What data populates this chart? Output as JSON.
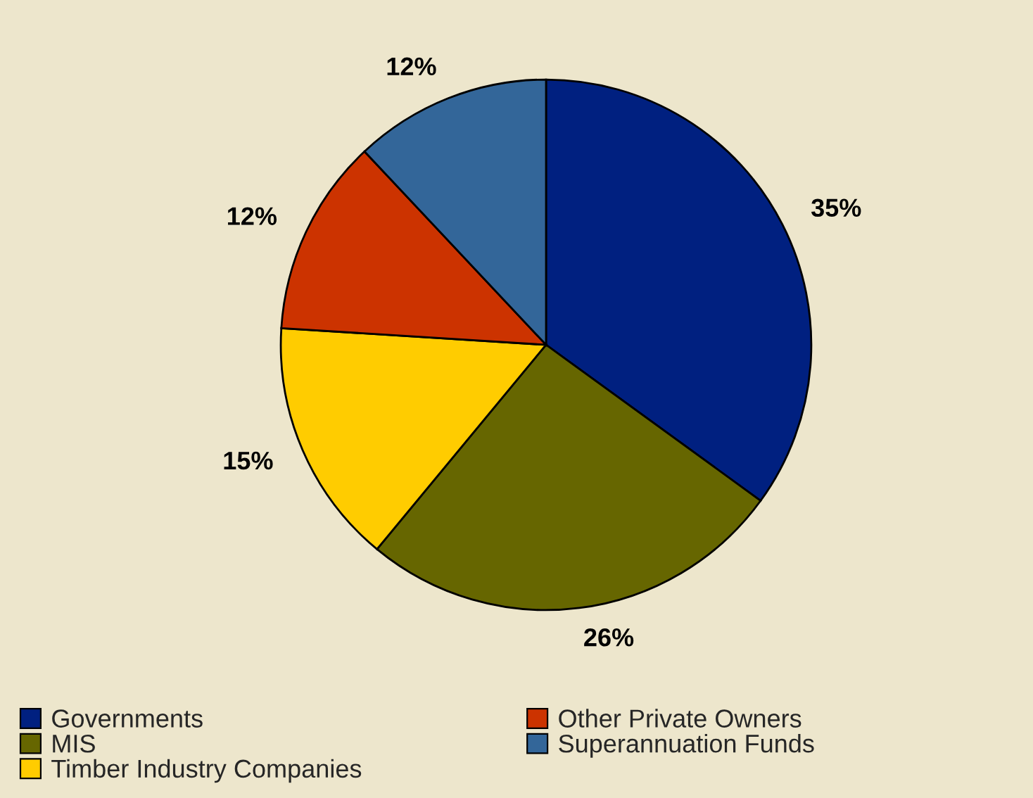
{
  "chart_data": {
    "type": "pie",
    "categories": [
      "Governments",
      "MIS",
      "Timber Industry Companies",
      "Other Private Owners",
      "Superannuation Funds"
    ],
    "values": [
      35,
      26,
      15,
      12,
      12
    ],
    "value_labels": [
      "35%",
      "26%",
      "15%",
      "12%",
      "12%"
    ],
    "colors": [
      "#002080",
      "#666600",
      "#ffcc00",
      "#cc3300",
      "#336699"
    ],
    "legend": "bottom left"
  }
}
